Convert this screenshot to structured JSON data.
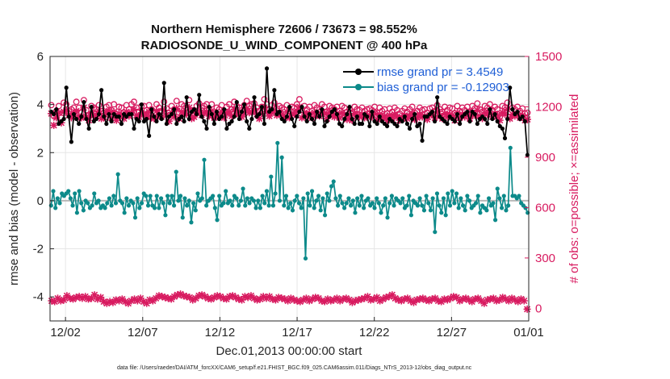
{
  "chart_data": {
    "type": "line",
    "title": "Northern Hemisphere 72606 / 73673 = 98.552%",
    "subtitle": "RADIOSONDE_U_WIND_COMPONENT @ 400 hPa",
    "xlabel": "Dec.01,2013 00:00:00 start",
    "ylabel": "rmse and bias (model - observation)",
    "ylabel_right": "# of obs: o=possible; ×=assimilated",
    "footer": "data file: /Users/raeder/DAI/ATM_forcXX/CAM6_setup/f.e21.FHIST_BGC.f09_025.CAM6assim.011/Diags_NTrS_2013-12/obs_diag_output.nc",
    "xlim": [
      0.5,
      31.5
    ],
    "ylim": [
      -5,
      6
    ],
    "ylim_right": [
      -75,
      1500
    ],
    "x_tick_positions": [
      1.5,
      6.5,
      11.5,
      16.5,
      21.5,
      26.5,
      31.5
    ],
    "x_tick_labels": [
      "12/02",
      "12/07",
      "12/12",
      "12/17",
      "12/22",
      "12/27",
      "01/01"
    ],
    "y_ticks": [
      -4,
      -2,
      0,
      2,
      4,
      6
    ],
    "y_ticks_right": [
      0,
      300,
      600,
      900,
      1200,
      1500
    ],
    "grid": true,
    "legend_position": "top-right",
    "series": [
      {
        "name": "rmse grand pr = 3.4549",
        "color": "#000000",
        "axis": "left",
        "values": [
          3.7,
          3.6,
          3.8,
          3.2,
          3.3,
          3.4,
          4.7,
          3.5,
          2.45,
          3.6,
          3.4,
          3.2,
          3.5,
          4.1,
          3.4,
          3.0,
          3.9,
          3.3,
          3.4,
          3.6,
          4.6,
          3.5,
          3.2,
          3.6,
          3.3,
          3.6,
          3.5,
          3.5,
          3.2,
          3.6,
          3.5,
          3.6,
          3.6,
          3.0,
          3.4,
          3.3,
          4.0,
          3.3,
          3.4,
          2.7,
          3.8,
          3.5,
          3.3,
          3.6,
          3.4,
          4.9,
          3.2,
          3.5,
          3.6,
          3.8,
          3.2,
          3.4,
          3.5,
          3.3,
          4.3,
          3.4,
          3.7,
          3.8,
          3.6,
          4.4,
          3.5,
          3.3,
          3.0,
          3.9,
          3.6,
          3.2,
          3.7,
          3.4,
          3.5,
          3.8,
          3.0,
          3.2,
          3.3,
          3.5,
          4.1,
          3.4,
          3.7,
          4.0,
          3.3,
          3.0,
          3.4,
          4.3,
          3.5,
          3.6,
          3.9,
          3.2,
          5.5,
          3.7,
          3.8,
          4.6,
          3.6,
          3.7,
          3.4,
          3.3,
          3.5,
          3.9,
          3.4,
          3.1,
          3.5,
          3.7,
          3.9,
          3.5,
          3.3,
          3.6,
          3.4,
          3.2,
          3.7,
          3.5,
          3.8,
          3.1,
          3.3,
          3.5,
          3.7,
          3.8,
          3.6,
          3.2,
          3.1,
          3.4,
          3.6,
          3.9,
          3.4,
          3.2,
          3.5,
          3.2,
          3.2,
          3.6,
          3.5,
          3.1,
          3.7,
          3.3,
          3.2,
          3.5,
          3.3,
          3.2,
          3.1,
          3.4,
          3.3,
          3.2,
          3.1,
          3.4,
          3.3,
          3.5,
          3.2,
          3.0,
          3.4,
          3.6,
          3.1,
          3.2,
          2.5,
          3.5,
          3.5,
          3.6,
          3.7,
          3.3,
          4.3,
          3.5,
          3.4,
          3.3,
          3.2,
          3.5,
          3.4,
          3.3,
          3.6,
          3.2,
          3.5,
          3.6,
          3.7,
          3.3,
          3.7,
          3.6,
          3.2,
          3.4,
          3.5,
          3.4,
          3.2,
          3.8,
          3.4,
          3.6,
          3.3,
          3.1,
          3.0,
          2.6,
          3.4,
          4.7,
          3.8,
          3.6,
          3.7,
          3.4,
          3.5,
          3.3,
          1.9
        ]
      },
      {
        "name": "bias grand pr = -0.12903",
        "color": "#0c8a8a",
        "axis": "left",
        "values": [
          -0.2,
          0.4,
          -0.3,
          0.1,
          -0.1,
          0.3,
          0.2,
          0.3,
          0.4,
          0.1,
          -0.2,
          0.3,
          -0.5,
          0.4,
          -0.1,
          -0.4,
          0.0,
          -0.1,
          -0.3,
          -0.2,
          0.3,
          -0.1,
          0.0,
          -0.3,
          -0.2,
          -0.3,
          -0.1,
          0.1,
          -0.2,
          0.2,
          -0.1,
          1.1,
          0.0,
          -0.1,
          -0.5,
          0.1,
          -0.2,
          0.0,
          -0.1,
          -0.7,
          0.1,
          -0.3,
          -0.1,
          0.3,
          0.2,
          -0.2,
          0.2,
          -0.2,
          -0.3,
          0.2,
          -0.3,
          0.1,
          -0.1,
          -0.6,
          0.2,
          -0.1,
          0.2,
          -0.2,
          1.2,
          0.0,
          0.2,
          -0.7,
          0.1,
          -0.2,
          0.0,
          -0.9,
          -0.1,
          -0.4,
          0.3,
          0.0,
          0.1,
          1.7,
          -0.2,
          0.0,
          0.1,
          0.2,
          -0.3,
          -0.8,
          0.2,
          -0.2,
          -0.1,
          0.4,
          -0.1,
          0.0,
          -0.2,
          0.2,
          0.1,
          -0.2,
          0.0,
          0.5,
          -0.2,
          0.1,
          -0.1,
          0.1,
          0.0,
          -0.3,
          0.0,
          -0.3,
          0.2,
          -0.1,
          0.4,
          -0.2,
          1.0,
          -0.2,
          0.3,
          2.4,
          0.0,
          1.8,
          -0.2,
          0.2,
          -0.3,
          -0.1,
          -0.4,
          0.0,
          0.2,
          -0.1,
          -0.3,
          0.1,
          -2.4,
          0.3,
          -0.2,
          0.4,
          -0.3,
          0.0,
          0.2,
          -0.4,
          0.1,
          -0.6,
          0.3,
          0.0,
          0.6,
          0.8,
          0.1,
          -0.2,
          0.2,
          -0.1,
          -0.3,
          -0.1,
          0.1,
          -0.2,
          0.0,
          -0.5,
          0.1,
          -0.2,
          0.2,
          -0.3,
          0.0,
          0.1,
          -0.2,
          -0.1,
          -0.3,
          0.1,
          -0.1,
          -0.5,
          -0.2,
          0.1,
          -0.7,
          -0.1,
          0.2,
          -0.2,
          0.1,
          0.0,
          -0.1,
          0.1,
          -0.3,
          -0.2,
          0.2,
          -0.6,
          0.0,
          -0.1,
          -0.2,
          0.1,
          -0.2,
          -0.4,
          0.2,
          -0.1,
          -0.4,
          0.1,
          -1.3,
          0.3,
          -0.2,
          -0.5,
          0.1,
          -0.6,
          0.3,
          -0.2,
          0.4,
          -0.1,
          0.3,
          -0.3,
          0.1,
          -0.2,
          -0.4,
          0.2,
          0.0,
          -0.3,
          -0.2,
          -0.1,
          0.2,
          -0.5,
          -0.2,
          -0.3,
          -0.4,
          0.1,
          -0.2,
          -0.1,
          -0.8,
          0.5,
          0.1,
          -0.3,
          0.2,
          -0.4,
          -0.2,
          2.2,
          0.2,
          0.2,
          0.1,
          0.2,
          -0.1,
          -0.2,
          -0.3,
          -0.5
        ]
      }
    ],
    "obs_possible": [
      1210,
      1145,
      1175,
      1205,
      1135,
      1225,
      1215,
      1175,
      1185,
      1195,
      1230,
      1195,
      1165,
      1240,
      1180,
      1150,
      1205,
      1195,
      1185,
      1210,
      1175,
      1165,
      1200,
      1210,
      1180,
      1215,
      1145,
      1200,
      1195,
      1165,
      1210,
      1185,
      1215,
      1230,
      1195,
      1170,
      1205,
      1205,
      1180,
      1210,
      1185,
      1165,
      1215,
      1195,
      1175,
      1230,
      1190,
      1150,
      1205,
      1185,
      1235,
      1165,
      1215,
      1205,
      1195,
      1240,
      1175,
      1180,
      1205,
      1220,
      1195,
      1205,
      1215,
      1185,
      1215,
      1170,
      1195,
      1185,
      1210,
      1175,
      1200,
      1215,
      1185,
      1230,
      1205,
      1195,
      1180,
      1210,
      1235,
      1205,
      1215,
      1220,
      1195,
      1175,
      1200,
      1245,
      1215,
      1185,
      1210,
      1225,
      1190,
      1205,
      1195,
      1185,
      1210,
      1175,
      1200,
      1195,
      1215,
      1245,
      1180,
      1205,
      1185,
      1200,
      1175,
      1210,
      1195,
      1185,
      1215,
      1200,
      1170,
      1205,
      1195,
      1185,
      1200,
      1175,
      1205,
      1195,
      1170,
      1185,
      1165,
      1200,
      1185,
      1180,
      1195,
      1175,
      1185,
      1190,
      1180,
      1200,
      1165,
      1195,
      1175,
      1185,
      1160,
      1190,
      1170,
      1195,
      1180,
      1160,
      1175,
      1190,
      1170,
      1185,
      1200,
      1165,
      1175,
      1195,
      1180,
      1185,
      1165,
      1190,
      1195,
      1175,
      1210,
      1185,
      1170,
      1200,
      1180,
      1195,
      1190,
      1160,
      1205,
      1175,
      1195,
      1180,
      1200,
      1170,
      1205,
      1190,
      1220,
      1185,
      1170,
      1205,
      1195,
      1215,
      1180,
      1200,
      1185,
      1160,
      1205,
      1195,
      1225,
      1170,
      1195,
      1185,
      1200,
      1175,
      1190,
      1160,
      1165
    ],
    "obs_assimilated": [
      1160,
      1090,
      1135,
      1165,
      1105,
      1170,
      1180,
      1150,
      1135,
      1160,
      1175,
      1145,
      1135,
      1195,
      1140,
      1120,
      1160,
      1150,
      1145,
      1175,
      1130,
      1140,
      1165,
      1175,
      1135,
      1170,
      1120,
      1160,
      1150,
      1130,
      1170,
      1145,
      1165,
      1185,
      1150,
      1140,
      1165,
      1160,
      1145,
      1170,
      1140,
      1130,
      1175,
      1150,
      1140,
      1180,
      1150,
      1115,
      1165,
      1140,
      1190,
      1130,
      1170,
      1160,
      1155,
      1195,
      1130,
      1140,
      1165,
      1175,
      1150,
      1165,
      1170,
      1145,
      1175,
      1135,
      1150,
      1145,
      1170,
      1135,
      1160,
      1170,
      1145,
      1185,
      1160,
      1155,
      1140,
      1165,
      1190,
      1165,
      1170,
      1175,
      1155,
      1130,
      1160,
      1195,
      1170,
      1145,
      1165,
      1180,
      1150,
      1160,
      1155,
      1140,
      1170,
      1135,
      1160,
      1155,
      1175,
      1200,
      1135,
      1165,
      1145,
      1160,
      1135,
      1165,
      1155,
      1145,
      1170,
      1160,
      1130,
      1165,
      1155,
      1140,
      1160,
      1135,
      1165,
      1155,
      1125,
      1140,
      1120,
      1160,
      1145,
      1140,
      1155,
      1135,
      1145,
      1150,
      1140,
      1160,
      1125,
      1155,
      1135,
      1145,
      1120,
      1150,
      1130,
      1155,
      1140,
      1120,
      1135,
      1150,
      1130,
      1145,
      1160,
      1125,
      1135,
      1155,
      1140,
      1145,
      1125,
      1150,
      1155,
      1135,
      1170,
      1145,
      1130,
      1160,
      1140,
      1155,
      1150,
      1120,
      1165,
      1135,
      1155,
      1140,
      1160,
      1130,
      1165,
      1150,
      1180,
      1145,
      1130,
      1165,
      1155,
      1175,
      1140,
      1160,
      1145,
      1120,
      1165,
      1155,
      1185,
      1130,
      1155,
      1145,
      1160,
      1135,
      1150,
      1120,
      1125
    ],
    "obs_bottom": [
      45,
      40,
      60,
      45,
      50,
      75,
      60,
      55,
      65,
      70,
      60,
      70,
      55,
      60,
      80,
      55,
      65,
      40,
      30,
      40,
      35,
      50,
      45,
      55,
      40,
      30,
      45,
      55,
      45,
      60,
      40,
      30,
      50,
      45,
      60,
      75,
      70,
      65,
      60,
      55,
      70,
      80,
      85,
      75,
      70,
      65,
      50,
      60,
      75,
      80,
      70,
      60,
      55,
      65,
      75,
      70,
      60,
      55,
      70,
      75,
      65,
      55,
      50,
      70,
      65,
      75,
      60,
      50,
      55,
      70,
      60,
      70,
      55,
      50,
      65,
      60,
      55,
      45,
      60,
      50,
      45,
      40,
      50,
      60,
      45,
      55,
      65,
      60,
      45,
      40,
      55,
      45,
      50,
      60,
      45,
      55,
      60,
      50,
      35,
      45,
      50,
      55,
      60,
      70,
      50,
      55,
      65,
      45,
      55,
      65,
      70,
      80,
      60,
      50,
      45,
      55,
      60,
      45,
      35,
      50,
      55,
      60,
      50,
      45,
      55,
      60,
      45,
      40,
      55,
      50,
      60,
      70,
      65,
      45,
      55,
      60,
      50,
      40,
      55,
      60,
      45,
      30,
      50,
      55,
      60,
      45,
      50,
      65,
      55,
      45,
      60,
      50,
      40,
      55,
      45,
      -5
    ]
  },
  "legend": {
    "rmse": "rmse grand pr = 3.4549",
    "bias": "bias grand pr = -0.12903"
  }
}
